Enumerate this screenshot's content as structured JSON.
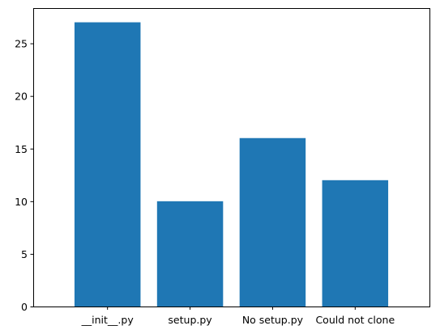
{
  "chart_data": {
    "type": "bar",
    "categories": [
      "__init__.py",
      "setup.py",
      "No setup.py",
      "Could not clone"
    ],
    "values": [
      27,
      10,
      16,
      12
    ],
    "ylim": [
      0,
      28.35
    ],
    "yticks": [
      0,
      5,
      10,
      15,
      20,
      25
    ],
    "grid": false,
    "bar_color": "#1f77b4"
  }
}
